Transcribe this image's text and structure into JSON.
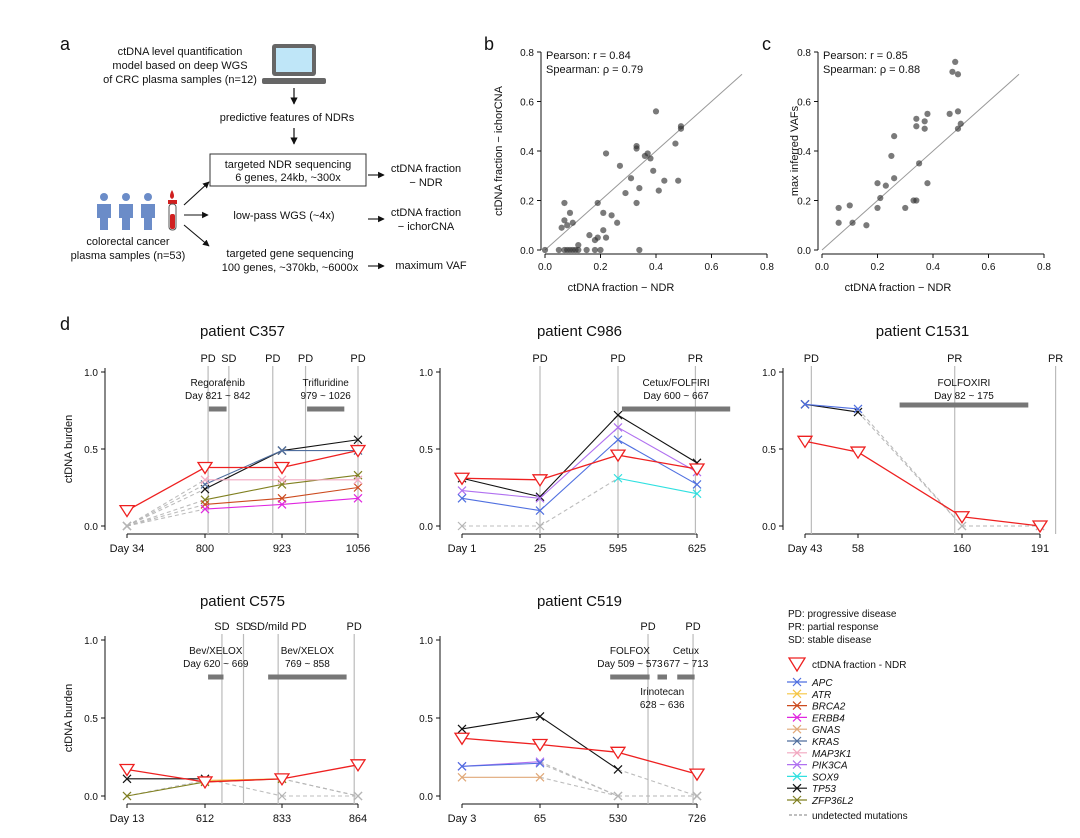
{
  "panels": {
    "a": {
      "letter": "a",
      "model_box": [
        "ctDNA level quantification",
        "model based on deep WGS",
        "of CRC plasma samples (n=12)"
      ],
      "features": "predictive features of NDRs",
      "targeted_ndr": [
        "targeted NDR sequencing",
        "6 genes, 24kb, ~300x"
      ],
      "samples": [
        "colorectal cancer",
        "plasma samples (n=53)"
      ],
      "lowpass": "low-pass WGS (~4x)",
      "targeted_gene": [
        "targeted gene sequencing",
        "100 genes, ~370kb, ~6000x"
      ],
      "out_ndr": [
        "ctDNA fraction",
        "− NDR"
      ],
      "out_ichor": [
        "ctDNA fraction",
        "− ichorCNA"
      ],
      "out_vaf": "maximum VAF"
    },
    "d": {
      "letter": "d"
    },
    "legend": {
      "abbrev": [
        "PD: progressive disease",
        "PR: partial response",
        "SD: stable disease"
      ],
      "ndr": "ctDNA fraction - NDR",
      "undetected": "undetected mutations"
    }
  },
  "colors": {
    "APC": "#4f6fe0",
    "ATR": "#f5c542",
    "BRCA2": "#cc4a1e",
    "ERBB4": "#e026e0",
    "GNAS": "#e0a878",
    "KRAS": "#4f6e9e",
    "MAP3K1": "#f2a8c0",
    "PIK3CA": "#b070f0",
    "SOX9": "#30e0e0",
    "TP53": "#111111",
    "ZFP36L2": "#808020",
    "NDR": "#ee2020"
  },
  "genes": [
    "APC",
    "ATR",
    "BRCA2",
    "ERBB4",
    "GNAS",
    "KRAS",
    "MAP3K1",
    "PIK3CA",
    "SOX9",
    "TP53",
    "ZFP36L2"
  ],
  "chart_data": [
    {
      "type": "scatter",
      "panel": "b",
      "title": "",
      "xlabel": "ctDNA fraction − NDR",
      "ylabel": "ctDNA fraction − ichorCNA",
      "xlim": [
        0,
        0.8
      ],
      "ylim": [
        0,
        0.8
      ],
      "xticks": [
        "0.0",
        "0.2",
        "0.4",
        "0.6",
        "0.8"
      ],
      "yticks": [
        "0.0",
        "0.2",
        "0.4",
        "0.6",
        "0.8"
      ],
      "annotations": [
        "Pearson: r = 0.84",
        "Spearman: ρ = 0.79"
      ],
      "points": [
        [
          0.0,
          0.0
        ],
        [
          0.05,
          0.0
        ],
        [
          0.07,
          0.0
        ],
        [
          0.08,
          0.0
        ],
        [
          0.09,
          0.0
        ],
        [
          0.1,
          0.0
        ],
        [
          0.11,
          0.0
        ],
        [
          0.12,
          0.0
        ],
        [
          0.15,
          0.0
        ],
        [
          0.18,
          0.0
        ],
        [
          0.2,
          0.0
        ],
        [
          0.34,
          0.0
        ],
        [
          0.06,
          0.09
        ],
        [
          0.07,
          0.12
        ],
        [
          0.08,
          0.1
        ],
        [
          0.1,
          0.11
        ],
        [
          0.07,
          0.19
        ],
        [
          0.09,
          0.15
        ],
        [
          0.12,
          0.02
        ],
        [
          0.16,
          0.06
        ],
        [
          0.18,
          0.04
        ],
        [
          0.19,
          0.05
        ],
        [
          0.21,
          0.08
        ],
        [
          0.22,
          0.05
        ],
        [
          0.19,
          0.19
        ],
        [
          0.21,
          0.15
        ],
        [
          0.24,
          0.14
        ],
        [
          0.26,
          0.11
        ],
        [
          0.27,
          0.34
        ],
        [
          0.29,
          0.23
        ],
        [
          0.31,
          0.29
        ],
        [
          0.33,
          0.19
        ],
        [
          0.34,
          0.25
        ],
        [
          0.33,
          0.41
        ],
        [
          0.36,
          0.38
        ],
        [
          0.38,
          0.37
        ],
        [
          0.39,
          0.32
        ],
        [
          0.37,
          0.39
        ],
        [
          0.4,
          0.56
        ],
        [
          0.22,
          0.39
        ],
        [
          0.41,
          0.24
        ],
        [
          0.43,
          0.28
        ],
        [
          0.47,
          0.43
        ],
        [
          0.48,
          0.28
        ],
        [
          0.49,
          0.49
        ],
        [
          0.49,
          0.5
        ],
        [
          0.33,
          0.42
        ]
      ]
    },
    {
      "type": "scatter",
      "panel": "c",
      "title": "",
      "xlabel": "ctDNA fraction − NDR",
      "ylabel": "max inferred VAFs",
      "xlim": [
        0,
        0.8
      ],
      "ylim": [
        0,
        0.8
      ],
      "xticks": [
        "0.0",
        "0.2",
        "0.4",
        "0.6",
        "0.8"
      ],
      "yticks": [
        "0.0",
        "0.2",
        "0.4",
        "0.6",
        "0.8"
      ],
      "annotations": [
        "Pearson:  r = 0.85",
        "Spearman: ρ = 0.88"
      ],
      "points": [
        [
          0.06,
          0.11
        ],
        [
          0.06,
          0.17
        ],
        [
          0.1,
          0.18
        ],
        [
          0.11,
          0.11
        ],
        [
          0.16,
          0.1
        ],
        [
          0.2,
          0.17
        ],
        [
          0.21,
          0.21
        ],
        [
          0.2,
          0.27
        ],
        [
          0.23,
          0.26
        ],
        [
          0.25,
          0.38
        ],
        [
          0.26,
          0.29
        ],
        [
          0.26,
          0.46
        ],
        [
          0.3,
          0.17
        ],
        [
          0.33,
          0.2
        ],
        [
          0.34,
          0.5
        ],
        [
          0.34,
          0.53
        ],
        [
          0.34,
          0.2
        ],
        [
          0.35,
          0.35
        ],
        [
          0.37,
          0.49
        ],
        [
          0.37,
          0.52
        ],
        [
          0.38,
          0.55
        ],
        [
          0.38,
          0.27
        ],
        [
          0.46,
          0.55
        ],
        [
          0.47,
          0.72
        ],
        [
          0.48,
          0.76
        ],
        [
          0.49,
          0.71
        ],
        [
          0.49,
          0.49
        ],
        [
          0.49,
          0.56
        ],
        [
          0.5,
          0.51
        ]
      ]
    },
    {
      "type": "line",
      "panel": "d",
      "title": "patient C357",
      "ylabel": "ctDNA burden",
      "ylim": [
        0,
        1
      ],
      "yticks": [
        "0.0",
        "0.5",
        "1.0"
      ],
      "x": [
        "Day 34",
        "800",
        "923",
        "1056"
      ],
      "statuses": [
        {
          "label": "PD",
          "pos": 1.04
        },
        {
          "label": "SD",
          "pos": 1.31
        },
        {
          "label": "PD",
          "pos": 1.88
        },
        {
          "label": "PD",
          "pos": 2.31
        },
        {
          "label": "PD",
          "pos": 3.0
        }
      ],
      "treatments": [
        {
          "label": [
            "Regorafenib",
            "Day 821 ~ 842"
          ],
          "start": 1.05,
          "end": 1.28
        },
        {
          "label": [
            "Trifluridine",
            "979 ~ 1026"
          ],
          "start": 2.33,
          "end": 2.82
        }
      ],
      "ndr": [
        0.1,
        0.38,
        0.38,
        0.49
      ],
      "series": [
        {
          "gene": "TP53",
          "values": [
            0,
            0.24,
            0.49,
            0.56
          ],
          "undetected": [
            0
          ]
        },
        {
          "gene": "KRAS",
          "values": [
            0,
            0.27,
            0.49,
            0.49
          ],
          "undetected": [
            0
          ]
        },
        {
          "gene": "ZFP36L2",
          "values": [
            0,
            0.17,
            0.27,
            0.33
          ],
          "undetected": [
            0
          ]
        },
        {
          "gene": "BRCA2",
          "values": [
            0,
            0.14,
            0.18,
            0.25
          ],
          "undetected": [
            0
          ]
        },
        {
          "gene": "ERBB4",
          "values": [
            0,
            0.11,
            0.14,
            0.18
          ],
          "undetected": [
            0
          ]
        },
        {
          "gene": "MAP3K1",
          "values": [
            0,
            0.3,
            0.3,
            0.3
          ],
          "undetected": [
            0
          ]
        }
      ]
    },
    {
      "type": "line",
      "panel": "d",
      "title": "patient C986",
      "ylabel": "",
      "ylim": [
        0,
        1
      ],
      "yticks": [
        "0.0",
        "0.5",
        "1.0"
      ],
      "x": [
        "Day 1",
        "25",
        "595",
        "625"
      ],
      "statuses": [
        {
          "label": "PD",
          "pos": 1.0
        },
        {
          "label": "PD",
          "pos": 2.0
        },
        {
          "label": "PR",
          "pos": 2.98
        }
      ],
      "treatments": [
        {
          "label": [
            "Cetux/FOLFIRI",
            "Day 600 ~ 667"
          ],
          "start": 2.05,
          "end": 3.42
        }
      ],
      "ndr": [
        0.31,
        0.3,
        0.46,
        0.37
      ],
      "series": [
        {
          "gene": "TP53",
          "values": [
            0.31,
            0.19,
            0.72,
            0.41
          ],
          "undetected": []
        },
        {
          "gene": "PIK3CA",
          "values": [
            0.23,
            0.18,
            0.64,
            0.35
          ],
          "undetected": []
        },
        {
          "gene": "APC",
          "values": [
            0.18,
            0.1,
            0.56,
            0.27
          ],
          "undetected": []
        },
        {
          "gene": "SOX9",
          "values": [
            0,
            0,
            0.31,
            0.21
          ],
          "undetected": [
            0,
            1
          ]
        }
      ]
    },
    {
      "type": "line",
      "panel": "d",
      "title": "patient C1531",
      "ylabel": "",
      "ylim": [
        0,
        1
      ],
      "yticks": [
        "0.0",
        "0.5",
        "1.0"
      ],
      "x": [
        "Day 43",
        "58",
        "160",
        "191"
      ],
      "statuses": [
        {
          "label": "PD",
          "pos": 0.12
        },
        {
          "label": "PR",
          "pos": 1.93
        },
        {
          "label": "PR",
          "pos": 3.2
        }
      ],
      "treatments": [
        {
          "label": [
            "FOLFOXIRI",
            "Day 82 ~ 175"
          ],
          "start": 1.4,
          "end": 2.85
        }
      ],
      "ndr": [
        0.55,
        0.48,
        0.06,
        0.0
      ],
      "series": [
        {
          "gene": "TP53",
          "values": [
            0.79,
            0.74,
            0,
            0
          ],
          "undetected": [
            2,
            3
          ]
        },
        {
          "gene": "APC",
          "values": [
            0.79,
            0.76,
            0,
            0
          ],
          "undetected": [
            2,
            3
          ]
        }
      ]
    },
    {
      "type": "line",
      "panel": "d",
      "title": "patient C575",
      "ylabel": "ctDNA burden",
      "ylim": [
        0,
        1
      ],
      "yticks": [
        "0.0",
        "0.5",
        "1.0"
      ],
      "x": [
        "Day 13",
        "612",
        "833",
        "864"
      ],
      "statuses": [
        {
          "label": "SD",
          "pos": 1.22
        },
        {
          "label": "SD",
          "pos": 1.5
        },
        {
          "label": "SD/mild PD",
          "pos": 1.95
        },
        {
          "label": "PD",
          "pos": 2.95
        }
      ],
      "treatments": [
        {
          "label": [
            "Bev/XELOX",
            "Day 620 ~ 669"
          ],
          "start": 1.04,
          "end": 1.24
        },
        {
          "label": [
            "Bev/XELOX",
            "769 ~ 858"
          ],
          "start": 1.82,
          "end": 2.85
        }
      ],
      "ndr": [
        0.17,
        0.09,
        0.11,
        0.2
      ],
      "series": [
        {
          "gene": "TP53",
          "values": [
            0.11,
            0.11,
            0,
            0
          ],
          "undetected": [
            2,
            3
          ]
        },
        {
          "gene": "ATR",
          "values": [
            0,
            0.1,
            0.11,
            0
          ],
          "undetected": [
            0,
            3
          ]
        },
        {
          "gene": "ZFP36L2",
          "values": [
            0,
            0.09,
            0.11,
            0
          ],
          "undetected": [
            3
          ]
        }
      ]
    },
    {
      "type": "line",
      "panel": "d",
      "title": "patient C519",
      "ylabel": "",
      "ylim": [
        0,
        1
      ],
      "yticks": [
        "0.0",
        "0.5",
        "1.0"
      ],
      "x": [
        "Day 3",
        "65",
        "530",
        "726"
      ],
      "statuses": [
        {
          "label": "PD",
          "pos": 2.38
        },
        {
          "label": "PD",
          "pos": 2.95
        }
      ],
      "treatments": [
        {
          "label": [
            "FOLFOX",
            "Day 509 ~ 573"
          ],
          "start": 1.9,
          "end": 2.4
        },
        {
          "label": [
            "Irinotecan",
            "628 ~ 636"
          ],
          "start": 2.5,
          "end": 2.62
        },
        {
          "label": [
            "Cetux",
            "677 ~ 713"
          ],
          "start": 2.75,
          "end": 2.97
        }
      ],
      "ndr": [
        0.37,
        0.33,
        0.28,
        0.14
      ],
      "series": [
        {
          "gene": "TP53",
          "values": [
            0.43,
            0.51,
            0.17,
            0
          ],
          "undetected": [
            3
          ]
        },
        {
          "gene": "PIK3CA",
          "values": [
            0.19,
            0.22,
            0,
            0
          ],
          "undetected": [
            2,
            3
          ]
        },
        {
          "gene": "APC",
          "values": [
            0.19,
            0.21,
            0,
            0
          ],
          "undetected": [
            2,
            3
          ]
        },
        {
          "gene": "GNAS",
          "values": [
            0.12,
            0.12,
            0,
            0
          ],
          "undetected": [
            2,
            3
          ]
        }
      ]
    }
  ]
}
